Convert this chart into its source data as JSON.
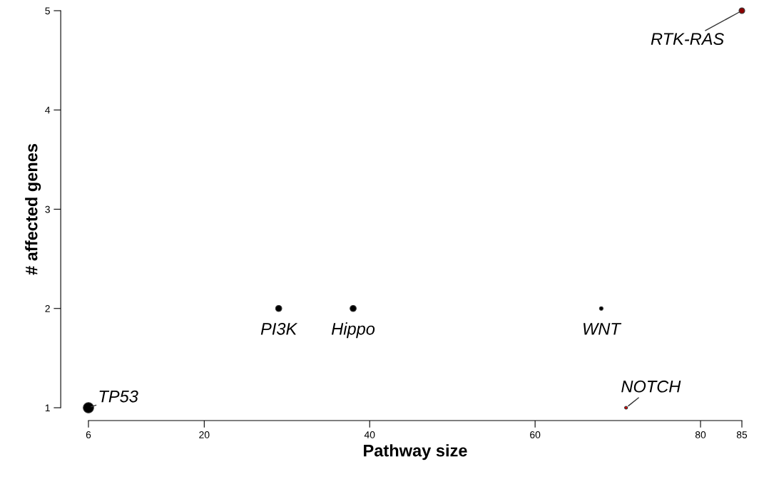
{
  "chart_data": {
    "type": "scatter",
    "xlabel": "Pathway size",
    "ylabel": "# affected genes",
    "x": [
      6,
      29,
      38,
      68,
      71,
      85
    ],
    "values": [
      1,
      2,
      2,
      2,
      1,
      5
    ],
    "sizes": [
      1,
      0.35,
      0.35,
      0.12,
      0.08,
      0.3
    ],
    "colors": [
      "#000000",
      "#000000",
      "#000000",
      "#000000",
      "#e00000",
      "#8b0000"
    ],
    "xlim": [
      6,
      85
    ],
    "ylim": [
      1,
      5
    ],
    "xticks": [
      6,
      20,
      40,
      60,
      80,
      85
    ],
    "yticks": [
      1,
      2,
      3,
      4,
      5
    ],
    "grid": false,
    "legend": false,
    "marker": "circle",
    "annotations": [
      {
        "text": "TP53",
        "x": 6,
        "y": 1
      },
      {
        "text": "PI3K",
        "x": 29,
        "y": 2
      },
      {
        "text": "Hippo",
        "x": 38,
        "y": 2
      },
      {
        "text": "WNT",
        "x": 68,
        "y": 2
      },
      {
        "text": "NOTCH",
        "x": 71,
        "y": 1
      },
      {
        "text": "RTK-RAS",
        "x": 85,
        "y": 5
      }
    ]
  }
}
